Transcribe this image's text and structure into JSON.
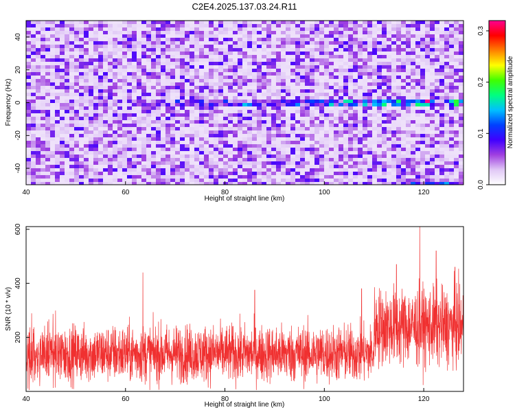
{
  "page_title": "C2E4.2025.137.03.24.R11",
  "chart_data": [
    {
      "type": "heatmap",
      "xlabel": "Height of straight line (km)",
      "ylabel": "Frequency (Hz)",
      "xlim": [
        40,
        128
      ],
      "ylim": [
        -50,
        50
      ],
      "x_ticks": [
        40,
        60,
        80,
        100,
        120
      ],
      "y_ticks": [
        -40,
        -20,
        0,
        20,
        40
      ],
      "x_tick_labels": [
        "40",
        "60",
        "80",
        "100",
        "120"
      ],
      "y_tick_labels": [
        "-40",
        "-20",
        "0",
        "20",
        "40"
      ],
      "colorbar": {
        "label": "Normalized spectral amplitude",
        "range": [
          0.0,
          0.32
        ],
        "ticks": [
          0.0,
          0.1,
          0.2,
          0.3
        ],
        "tick_labels": [
          "0.0",
          "0.1",
          "0.2",
          "0.3"
        ],
        "colormap": [
          "#ffffff",
          "#e0c8f6",
          "#a040e0",
          "#4000ff",
          "#0040ff",
          "#00c0ff",
          "#00ff80",
          "#40ff00",
          "#ffff00",
          "#ff8000",
          "#ff0000",
          "#ff0090"
        ]
      },
      "features": [
        {
          "description_source": "visual",
          "x_range": [
            60,
            128
          ],
          "y": 0,
          "amplitude_peak": 0.3,
          "peak_x": 121
        },
        {
          "description_source": "visual",
          "x_range": [
            112,
            128
          ],
          "y": -49,
          "amplitude_peak": 0.2
        }
      ]
    },
    {
      "type": "line",
      "xlabel": "Height of straight line (km)",
      "ylabel": "SNR (10 * v/v)",
      "xlim": [
        40,
        128
      ],
      "ylim": [
        0,
        610
      ],
      "x_ticks": [
        40,
        60,
        80,
        100,
        120
      ],
      "y_ticks": [
        200,
        400,
        600
      ],
      "x_tick_labels": [
        "40",
        "60",
        "80",
        "100",
        "120"
      ],
      "y_tick_labels": [
        "200",
        "400",
        "600"
      ],
      "line_color": "#f03030",
      "segments": [
        {
          "x_range": [
            40,
            110
          ],
          "mean": 140,
          "spread": 95,
          "typical_max": 330
        },
        {
          "x_range": [
            110,
            128
          ],
          "mean": 240,
          "spread": 130,
          "typical_max": 470
        }
      ],
      "notable_peaks": [
        {
          "x": 63.5,
          "y": 440
        },
        {
          "x": 86,
          "y": 375
        },
        {
          "x": 107.5,
          "y": 380
        },
        {
          "x": 114.5,
          "y": 470
        },
        {
          "x": 119.2,
          "y": 610
        },
        {
          "x": 122.5,
          "y": 520
        },
        {
          "x": 126.3,
          "y": 460
        }
      ]
    }
  ]
}
